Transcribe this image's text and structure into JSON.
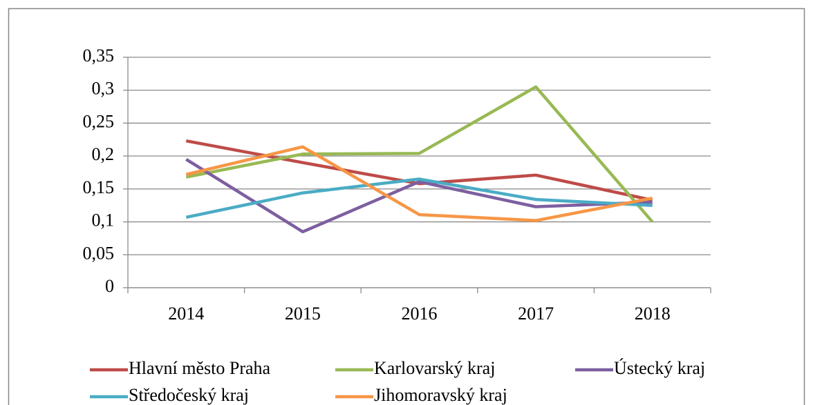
{
  "chart_data": {
    "type": "line",
    "categories": [
      "2014",
      "2015",
      "2016",
      "2017",
      "2018"
    ],
    "series": [
      {
        "name": "Hlavní město Praha",
        "color": "#be4b48",
        "values": [
          0.223,
          0.19,
          0.158,
          0.171,
          0.133
        ]
      },
      {
        "name": "Karlovarský kraj",
        "color": "#98b954",
        "values": [
          0.168,
          0.203,
          0.204,
          0.305,
          0.1
        ]
      },
      {
        "name": "Ústecký kraj",
        "color": "#7d5fa0",
        "values": [
          0.195,
          0.085,
          0.161,
          0.123,
          0.13
        ]
      },
      {
        "name": "Středočeský kraj",
        "color": "#4aacc5",
        "values": [
          0.107,
          0.144,
          0.165,
          0.134,
          0.125
        ]
      },
      {
        "name": "Jihomoravský kraj",
        "color": "#f79646",
        "values": [
          0.172,
          0.214,
          0.111,
          0.102,
          0.136
        ]
      }
    ],
    "ylim": [
      0,
      0.35
    ],
    "yticks": [
      0,
      {
        "value": 0.05,
        "label": "0,05"
      },
      {
        "value": 0.1,
        "label": "0,1"
      },
      {
        "value": 0.15,
        "label": "0,15"
      },
      {
        "value": 0.2,
        "label": "0,2"
      },
      {
        "value": 0.25,
        "label": "0,25"
      },
      {
        "value": 0.3,
        "label": "0,3"
      },
      {
        "value": 0.35,
        "label": "0,35"
      }
    ],
    "grid": true
  }
}
